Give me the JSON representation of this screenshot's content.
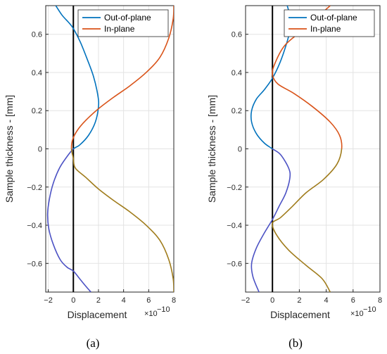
{
  "chart_data": [
    {
      "panel": "(a)",
      "type": "line",
      "xlabel": "Displacement",
      "x_exponent": "×10",
      "x_exponent_power": "−10",
      "ylabel": "Sample thickness - [mm]",
      "xlim": [
        -2.2,
        8
      ],
      "ylim": [
        -0.75,
        0.75
      ],
      "xticks": [
        -2,
        0,
        2,
        4,
        6,
        8
      ],
      "xtick_labels": [
        "−2",
        "0",
        "2",
        "4",
        "6",
        "8"
      ],
      "yticks": [
        -0.6,
        -0.4,
        -0.2,
        0,
        0.2,
        0.4,
        0.6
      ],
      "ytick_labels": [
        "−0.6",
        "−0.4",
        "−0.2",
        "0",
        "0.2",
        "0.4",
        "0.6"
      ],
      "grid": true,
      "legend": "top-right",
      "zero_line": true,
      "series": [
        {
          "name": "Out-of-plane",
          "color": "#0072BD",
          "color_lower": "#4C52C4",
          "points": [
            [
              -1.4,
              0.75
            ],
            [
              -0.9,
              0.7
            ],
            [
              -0.35,
              0.66
            ],
            [
              0.0,
              0.63
            ],
            [
              0.55,
              0.56
            ],
            [
              1.1,
              0.47
            ],
            [
              1.6,
              0.38
            ],
            [
              1.95,
              0.28
            ],
            [
              2.0,
              0.22
            ],
            [
              1.75,
              0.14
            ],
            [
              1.2,
              0.07
            ],
            [
              0.5,
              0.02
            ],
            [
              0.0,
              0.0
            ],
            [
              -0.5,
              -0.04
            ],
            [
              -1.1,
              -0.1
            ],
            [
              -1.6,
              -0.18
            ],
            [
              -1.9,
              -0.26
            ],
            [
              -2.05,
              -0.34
            ],
            [
              -1.95,
              -0.42
            ],
            [
              -1.6,
              -0.5
            ],
            [
              -1.05,
              -0.58
            ],
            [
              -0.5,
              -0.62
            ],
            [
              0.0,
              -0.64
            ],
            [
              0.5,
              -0.68
            ],
            [
              1.0,
              -0.72
            ],
            [
              1.4,
              -0.75
            ]
          ]
        },
        {
          "name": "In-plane",
          "color": "#D95319",
          "color_lower": "#A07C1C",
          "points": [
            [
              8.0,
              0.75
            ],
            [
              7.95,
              0.68
            ],
            [
              7.6,
              0.58
            ],
            [
              6.9,
              0.48
            ],
            [
              5.8,
              0.4
            ],
            [
              4.5,
              0.33
            ],
            [
              3.2,
              0.27
            ],
            [
              2.0,
              0.21
            ],
            [
              1.0,
              0.15
            ],
            [
              0.35,
              0.1
            ],
            [
              -0.05,
              0.05
            ],
            [
              -0.15,
              0.0
            ],
            [
              0.0,
              -0.05
            ],
            [
              0.15,
              -0.1
            ],
            [
              1.0,
              -0.15
            ],
            [
              2.0,
              -0.21
            ],
            [
              3.2,
              -0.27
            ],
            [
              4.5,
              -0.33
            ],
            [
              5.8,
              -0.4
            ],
            [
              6.9,
              -0.48
            ],
            [
              7.6,
              -0.58
            ],
            [
              7.95,
              -0.68
            ],
            [
              8.0,
              -0.75
            ]
          ]
        }
      ]
    },
    {
      "panel": "(b)",
      "type": "line",
      "xlabel": "Displacement",
      "x_exponent": "×10",
      "x_exponent_power": "−10",
      "ylabel": "Sample thickness - [mm]",
      "xlim": [
        -2.0,
        8
      ],
      "ylim": [
        -0.75,
        0.75
      ],
      "xticks": [
        -2,
        0,
        2,
        4,
        6,
        8
      ],
      "xtick_labels": [
        "−2",
        "0",
        "2",
        "4",
        "6",
        "8"
      ],
      "yticks": [
        -0.6,
        -0.4,
        -0.2,
        0,
        0.2,
        0.4,
        0.6
      ],
      "ytick_labels": [
        "−0.6",
        "−0.4",
        "−0.2",
        "0",
        "0.2",
        "0.4",
        "0.6"
      ],
      "grid": true,
      "legend": "top-right",
      "zero_line": true,
      "series": [
        {
          "name": "Out-of-plane",
          "color": "#0072BD",
          "color_lower": "#4C52C4",
          "points": [
            [
              1.1,
              0.75
            ],
            [
              1.35,
              0.68
            ],
            [
              1.3,
              0.62
            ],
            [
              1.0,
              0.54
            ],
            [
              0.55,
              0.45
            ],
            [
              0.0,
              0.37
            ],
            [
              -0.6,
              0.31
            ],
            [
              -1.2,
              0.26
            ],
            [
              -1.55,
              0.2
            ],
            [
              -1.55,
              0.14
            ],
            [
              -1.2,
              0.08
            ],
            [
              -0.6,
              0.03
            ],
            [
              0.0,
              0.0
            ],
            [
              0.6,
              -0.03
            ],
            [
              1.2,
              -0.1
            ],
            [
              1.3,
              -0.15
            ],
            [
              1.0,
              -0.23
            ],
            [
              0.5,
              -0.3
            ],
            [
              0.0,
              -0.37
            ],
            [
              -0.6,
              -0.44
            ],
            [
              -1.2,
              -0.52
            ],
            [
              -1.55,
              -0.6
            ],
            [
              -1.45,
              -0.67
            ],
            [
              -1.0,
              -0.75
            ]
          ]
        },
        {
          "name": "In-plane",
          "color": "#D95319",
          "color_lower": "#A07C1C",
          "points": [
            [
              4.3,
              0.75
            ],
            [
              3.5,
              0.7
            ],
            [
              2.2,
              0.62
            ],
            [
              0.9,
              0.54
            ],
            [
              0.2,
              0.45
            ],
            [
              0.0,
              0.39
            ],
            [
              0.4,
              0.34
            ],
            [
              1.6,
              0.29
            ],
            [
              3.0,
              0.22
            ],
            [
              4.3,
              0.14
            ],
            [
              5.0,
              0.07
            ],
            [
              5.15,
              0.0
            ],
            [
              4.8,
              -0.08
            ],
            [
              3.8,
              -0.16
            ],
            [
              2.5,
              -0.23
            ],
            [
              1.5,
              -0.3
            ],
            [
              0.6,
              -0.36
            ],
            [
              0.0,
              -0.39
            ],
            [
              0.3,
              -0.45
            ],
            [
              1.2,
              -0.53
            ],
            [
              2.5,
              -0.61
            ],
            [
              3.7,
              -0.68
            ],
            [
              4.3,
              -0.75
            ]
          ]
        }
      ]
    }
  ]
}
